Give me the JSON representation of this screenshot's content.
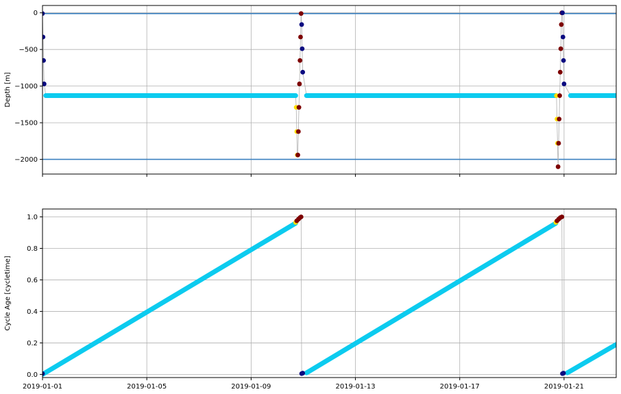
{
  "colors": {
    "park": "#0ccbef",
    "descent": "#ffe000",
    "profile": "#7d0000",
    "ascent": "#0a0a80",
    "reference": "#3a80c0",
    "trajectory": "#b0b0b0"
  },
  "chart_data": [
    {
      "type": "scatter",
      "title": "",
      "xlabel": "",
      "ylabel": "Depth [m]",
      "xlim": [
        "2019-01-01",
        "2019-01-23T00:00"
      ],
      "ylim": [
        -2200,
        100
      ],
      "yticks": [
        0,
        -500,
        -1000,
        -1500,
        -2000
      ],
      "xticks": [],
      "grid": true,
      "reference_lines": [
        -10,
        -2000
      ],
      "series": [
        {
          "role": "park",
          "segments": [
            [
              [
                "2019-01-01T03:00",
                -1130
              ],
              [
                "2019-01-10T17:00",
                -1130
              ]
            ],
            [
              [
                "2019-01-11T03:00",
                -1130
              ],
              [
                "2019-01-20T16:30",
                -1130
              ]
            ],
            [
              [
                "2019-01-21T06:00",
                -1130
              ],
              [
                "2019-01-23T00:00",
                -1130
              ]
            ]
          ]
        },
        {
          "role": "descent",
          "points": [
            [
              "2019-01-10T17:30",
              -1290
            ],
            [
              "2019-01-10T18:00",
              -1620
            ],
            [
              "2019-01-10T18:30",
              -1940
            ],
            [
              "2019-01-20T17:00",
              -1130
            ],
            [
              "2019-01-20T17:30",
              -1450
            ],
            [
              "2019-01-20T18:00",
              -1780
            ]
          ]
        },
        {
          "role": "profile",
          "points": [
            [
              "2019-01-10T19:00",
              -1940
            ],
            [
              "2019-01-10T19:30",
              -1620
            ],
            [
              "2019-01-10T20:00",
              -1290
            ],
            [
              "2019-01-10T20:30",
              -970
            ],
            [
              "2019-01-10T21:00",
              -650
            ],
            [
              "2019-01-10T21:30",
              -330
            ],
            [
              "2019-01-10T22:00",
              -10
            ],
            [
              "2019-01-20T18:30",
              -2100
            ],
            [
              "2019-01-20T19:00",
              -1780
            ],
            [
              "2019-01-20T19:30",
              -1450
            ],
            [
              "2019-01-20T20:00",
              -1130
            ],
            [
              "2019-01-20T20:30",
              -810
            ],
            [
              "2019-01-20T21:00",
              -490
            ],
            [
              "2019-01-20T21:30",
              -160
            ],
            [
              "2019-01-20T22:00",
              0
            ]
          ]
        },
        {
          "role": "ascent",
          "points": [
            [
              "2019-01-01T00:00",
              -10
            ],
            [
              "2019-01-01T00:30",
              -330
            ],
            [
              "2019-01-01T01:00",
              -650
            ],
            [
              "2019-01-01T01:30",
              -970
            ],
            [
              "2019-01-10T22:30",
              -160
            ],
            [
              "2019-01-10T23:00",
              -490
            ],
            [
              "2019-01-10T23:30",
              -810
            ],
            [
              "2019-01-20T22:30",
              0
            ],
            [
              "2019-01-20T23:00",
              -330
            ],
            [
              "2019-01-20T23:30",
              -650
            ],
            [
              "2019-01-21T00:00",
              -970
            ]
          ]
        }
      ]
    },
    {
      "type": "scatter",
      "title": "",
      "xlabel": "",
      "ylabel": "Cycle Age [cycletime]",
      "xlim": [
        "2019-01-01",
        "2019-01-23T00:00"
      ],
      "ylim": [
        -0.02,
        1.05
      ],
      "yticks": [
        0.0,
        0.2,
        0.4,
        0.6,
        0.8,
        1.0
      ],
      "ytick_labels": [
        "0.0",
        "0.2",
        "0.4",
        "0.6",
        "0.8",
        "1.0"
      ],
      "xticks": [
        "2019-01-01",
        "2019-01-05",
        "2019-01-09",
        "2019-01-13",
        "2019-01-17",
        "2019-01-21"
      ],
      "grid": true,
      "series": [
        {
          "role": "park",
          "segments": [
            [
              [
                "2019-01-01T00:00",
                0.0
              ],
              [
                "2019-01-10T17:00",
                0.96
              ]
            ],
            [
              [
                "2019-01-11T03:00",
                0.01
              ],
              [
                "2019-01-20T16:30",
                0.96
              ]
            ],
            [
              [
                "2019-01-21T03:00",
                0.01
              ],
              [
                "2019-01-23T00:00",
                0.19
              ]
            ]
          ]
        },
        {
          "role": "descent",
          "points": [
            [
              "2019-01-10T17:00",
              0.965
            ],
            [
              "2019-01-10T17:30",
              0.97
            ],
            [
              "2019-01-20T16:30",
              0.965
            ],
            [
              "2019-01-20T17:00",
              0.97
            ]
          ]
        },
        {
          "role": "profile",
          "points": [
            [
              "2019-01-10T18:00",
              0.975
            ],
            [
              "2019-01-10T19:30",
              0.985
            ],
            [
              "2019-01-10T21:00",
              0.995
            ],
            [
              "2019-01-10T22:00",
              1.0
            ],
            [
              "2019-01-20T17:30",
              0.975
            ],
            [
              "2019-01-20T19:00",
              0.985
            ],
            [
              "2019-01-20T20:30",
              0.995
            ],
            [
              "2019-01-20T22:00",
              1.0
            ]
          ]
        },
        {
          "role": "ascent",
          "points": [
            [
              "2019-01-01T00:00",
              0.005
            ],
            [
              "2019-01-10T22:30",
              0.005
            ],
            [
              "2019-01-10T23:30",
              0.008
            ],
            [
              "2019-01-20T22:30",
              0.005
            ],
            [
              "2019-01-20T23:30",
              0.008
            ]
          ]
        }
      ]
    }
  ]
}
